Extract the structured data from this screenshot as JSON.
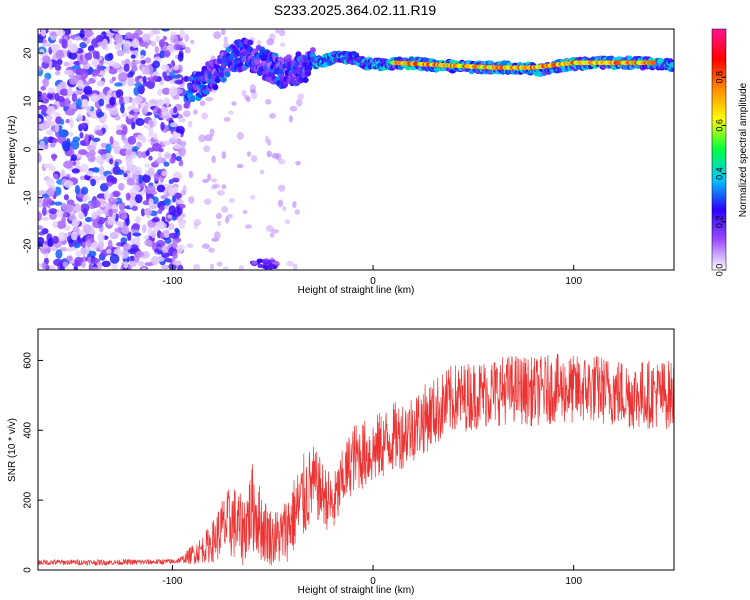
{
  "title": "S233.2025.364.02.11.R19",
  "chart_data": [
    {
      "type": "heatmap",
      "xlabel": "Height of straight line (km)",
      "ylabel": "Frequency (Hz)",
      "xlim": [
        -167,
        150
      ],
      "ylim": [
        -25,
        25
      ],
      "x_ticks": [
        {
          "v": -100,
          "label": "-100"
        },
        {
          "v": 0,
          "label": "0"
        },
        {
          "v": 100,
          "label": "100"
        }
      ],
      "y_ticks": [
        {
          "v": -20,
          "label": "-20"
        },
        {
          "v": -10,
          "label": "-10"
        },
        {
          "v": 0,
          "label": "0"
        },
        {
          "v": 10,
          "label": "10"
        },
        {
          "v": 20,
          "label": "20"
        }
      ],
      "colorbar": {
        "label": "Normalized spectral amplitude",
        "range": [
          0,
          1
        ],
        "ticks": [
          {
            "v": 0.0,
            "label": "0.0"
          },
          {
            "v": 0.2,
            "label": "0.2"
          },
          {
            "v": 0.4,
            "label": "0.4"
          },
          {
            "v": 0.6,
            "label": "0.6"
          },
          {
            "v": 0.8,
            "label": "0.8"
          }
        ],
        "colors": [
          "#ffffff",
          "#9b4dff",
          "#2a00ff",
          "#00c8ff",
          "#00ff40",
          "#ffff00",
          "#ff8c00",
          "#ff0000",
          "#ff1493"
        ]
      },
      "ridge": {
        "description_free": true,
        "points": [
          [
            -93,
            12
          ],
          [
            -85,
            14
          ],
          [
            -78,
            16
          ],
          [
            -70,
            19
          ],
          [
            -62,
            20
          ],
          [
            -55,
            18
          ],
          [
            -45,
            16
          ],
          [
            -35,
            17
          ],
          [
            -28,
            18
          ],
          [
            -20,
            19
          ],
          [
            -10,
            19
          ],
          [
            -5,
            18
          ],
          [
            5,
            17.5
          ],
          [
            15,
            18
          ],
          [
            30,
            17.5
          ],
          [
            50,
            17
          ],
          [
            70,
            17
          ],
          [
            85,
            16.5
          ],
          [
            95,
            17.5
          ],
          [
            110,
            18
          ],
          [
            130,
            18
          ],
          [
            150,
            17.5
          ]
        ],
        "strong_segment": [
          [
            10,
            18
          ],
          [
            35,
            17.5
          ],
          [
            60,
            17
          ],
          [
            80,
            17
          ],
          [
            100,
            18
          ],
          [
            120,
            18
          ],
          [
            140,
            18
          ]
        ],
        "noise_region_x": [
          -167,
          -95
        ],
        "noise_amplitude": 0.3
      }
    },
    {
      "type": "line",
      "xlabel": "Height of straight line (km)",
      "ylabel": "SNR (10 * v/v)",
      "xlim": [
        -167,
        150
      ],
      "ylim": [
        0,
        690
      ],
      "x_ticks": [
        {
          "v": -100,
          "label": "-100"
        },
        {
          "v": 0,
          "label": "0"
        },
        {
          "v": 100,
          "label": "100"
        }
      ],
      "y_ticks": [
        {
          "v": 0,
          "label": "0"
        },
        {
          "v": 200,
          "label": "200"
        },
        {
          "v": 400,
          "label": "400"
        },
        {
          "v": 600,
          "label": "600"
        }
      ],
      "color": "#ee3333",
      "series": [
        {
          "name": "SNR",
          "x": [
            -167,
            -150,
            -130,
            -110,
            -100,
            -95,
            -90,
            -85,
            -80,
            -75,
            -70,
            -65,
            -60,
            -55,
            -50,
            -45,
            -40,
            -35,
            -30,
            -25,
            -20,
            -15,
            -10,
            -5,
            0,
            5,
            10,
            15,
            20,
            25,
            30,
            40,
            50,
            60,
            70,
            80,
            90,
            100,
            110,
            120,
            130,
            140,
            150
          ],
          "mean": [
            22,
            22,
            22,
            23,
            24,
            30,
            45,
            60,
            80,
            120,
            140,
            110,
            180,
            120,
            90,
            100,
            150,
            200,
            250,
            220,
            180,
            260,
            320,
            330,
            340,
            360,
            380,
            390,
            410,
            430,
            450,
            490,
            500,
            510,
            520,
            510,
            520,
            515,
            520,
            510,
            500,
            505,
            500
          ],
          "amplitude": [
            8,
            8,
            8,
            8,
            8,
            10,
            30,
            40,
            60,
            90,
            110,
            100,
            130,
            100,
            80,
            90,
            110,
            130,
            110,
            90,
            90,
            90,
            100,
            100,
            100,
            100,
            100,
            100,
            100,
            100,
            100,
            100,
            100,
            100,
            100,
            100,
            100,
            100,
            100,
            100,
            100,
            100,
            100
          ]
        }
      ]
    }
  ]
}
